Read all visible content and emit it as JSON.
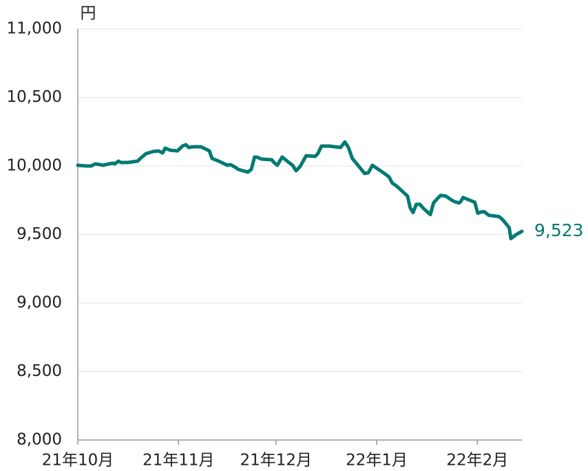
{
  "chart_data": {
    "type": "line",
    "y_unit": "円",
    "x": [
      0,
      2.5,
      4.2,
      5.3,
      6.8,
      7.8,
      9.5,
      10.8,
      11.4,
      12.5,
      13.3,
      15.3,
      18.4,
      19.5,
      21.0,
      23.1,
      24.8,
      26.1,
      26.9,
      28.4,
      30.7,
      32.2,
      33.3,
      34.1,
      35.8,
      37.9,
      39.2,
      40.5,
      41.3,
      43.4,
      46.0,
      47.0,
      48.5,
      49.4,
      52.3,
      53.4,
      54.4,
      55.1,
      56.6,
      59.7,
      60.4,
      61.4,
      62.9,
      65.0,
      66.1,
      67.2,
      68.4,
      70.3,
      73.1,
      73.9,
      75.0,
      77.3,
      80.9,
      82.2,
      83.3,
      84.5,
      88.3,
      89.4,
      90.7,
      92.2,
      94.1,
      95.8,
      96.8,
      98.3,
      101.5,
      102.3,
      103.2,
      104.2,
      105.3,
      106.4,
      108.5,
      109.5,
      110.8,
      111.7,
      113.3,
      114.8,
      115.9,
      117.4,
      118.0,
      118.6,
      120.1,
      122.2,
      123.1,
      124.4,
      125.2,
      126.5,
      129.7,
      130.7,
      132.8,
      133.3,
      135.0,
      136.7
    ],
    "series": [
      {
        "color": "#007a73",
        "values": [
          10005,
          10000,
          10000,
          10015,
          10010,
          10005,
          10015,
          10020,
          10015,
          10035,
          10025,
          10025,
          10035,
          10060,
          10090,
          10105,
          10110,
          10095,
          10130,
          10115,
          10110,
          10145,
          10155,
          10135,
          10140,
          10140,
          10125,
          10110,
          10055,
          10035,
          10005,
          10010,
          9990,
          9975,
          9955,
          9975,
          10065,
          10065,
          10050,
          10045,
          10025,
          10005,
          10065,
          10025,
          10005,
          9965,
          9995,
          10075,
          10070,
          10090,
          10145,
          10145,
          10135,
          10175,
          10135,
          10055,
          9945,
          9950,
          10005,
          9980,
          9950,
          9920,
          9875,
          9850,
          9780,
          9695,
          9660,
          9720,
          9720,
          9690,
          9645,
          9730,
          9765,
          9785,
          9780,
          9755,
          9740,
          9730,
          9745,
          9770,
          9755,
          9735,
          9655,
          9665,
          9665,
          9640,
          9630,
          9610,
          9550,
          9470,
          9500,
          9523
        ],
        "end_label": "9,523"
      }
    ],
    "xlim": [
      0,
      136.7
    ],
    "xticks": [
      {
        "value": 0,
        "label": "21年10月"
      },
      {
        "value": 31,
        "label": "21年11月"
      },
      {
        "value": 61,
        "label": "21年12月"
      },
      {
        "value": 92,
        "label": "22年1月"
      },
      {
        "value": 123,
        "label": "22年2月"
      }
    ],
    "ylim": [
      8000,
      11000
    ],
    "yticks": [
      {
        "value": 8000,
        "label": "8,000"
      },
      {
        "value": 8500,
        "label": "8,500"
      },
      {
        "value": 9000,
        "label": "9,000"
      },
      {
        "value": 9500,
        "label": "9,500"
      },
      {
        "value": 10000,
        "label": "10,000"
      },
      {
        "value": 10500,
        "label": "10,500"
      },
      {
        "value": 11000,
        "label": "11,000"
      }
    ],
    "grid": true
  }
}
